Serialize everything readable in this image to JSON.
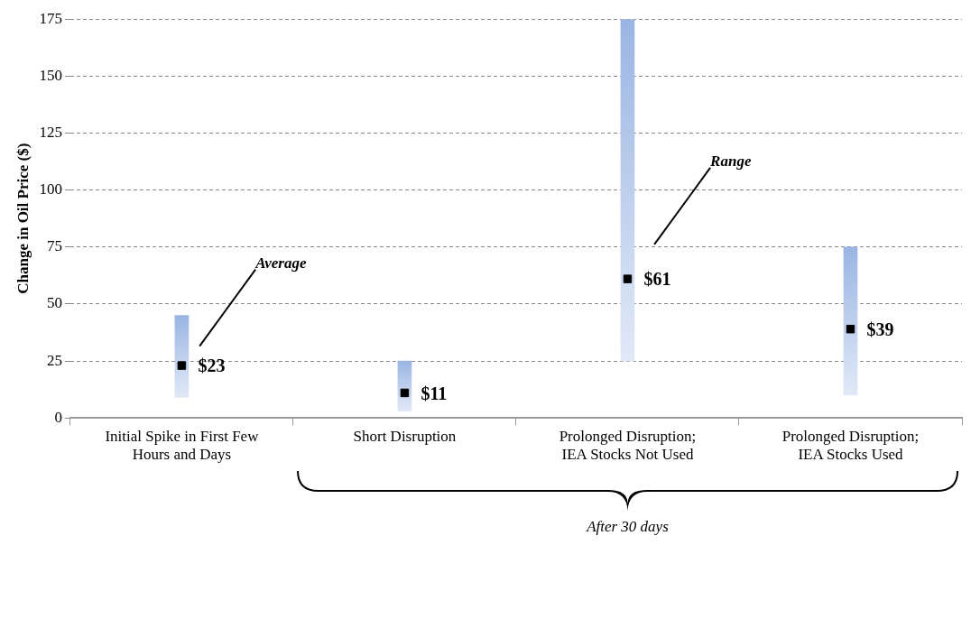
{
  "chart_data": {
    "type": "bar",
    "ylabel": "Change in Oil Price ($)",
    "categories": [
      "Initial Spike in First Few Hours and Days",
      "Short Disruption",
      "Prolonged Disruption; IEA Stocks Not Used",
      "Prolonged Disruption; IEA Stocks Used"
    ],
    "series": [
      {
        "color": "#9ab5e3",
        "base": [
          9,
          3,
          25,
          10
        ],
        "values": [
          36,
          22,
          150,
          65
        ]
      },
      {
        "type": "scatter",
        "color": "#000000",
        "marker": "square",
        "x": [
          "Initial Spike in First Few Hours and Days",
          "Short Disruption",
          "Prolonged Disruption; IEA Stocks Not Used",
          "Prolonged Disruption; IEA Stocks Used"
        ],
        "values": [
          23,
          11,
          61,
          39
        ],
        "value_labels": [
          "$23",
          "$11",
          "$61",
          "$39"
        ]
      }
    ],
    "ylim": [
      0,
      175
    ],
    "yticks": [
      0,
      25,
      50,
      75,
      100,
      125,
      150,
      175
    ],
    "grid": "y",
    "annotations": [
      "Average",
      "Range",
      "After 30 days"
    ]
  }
}
